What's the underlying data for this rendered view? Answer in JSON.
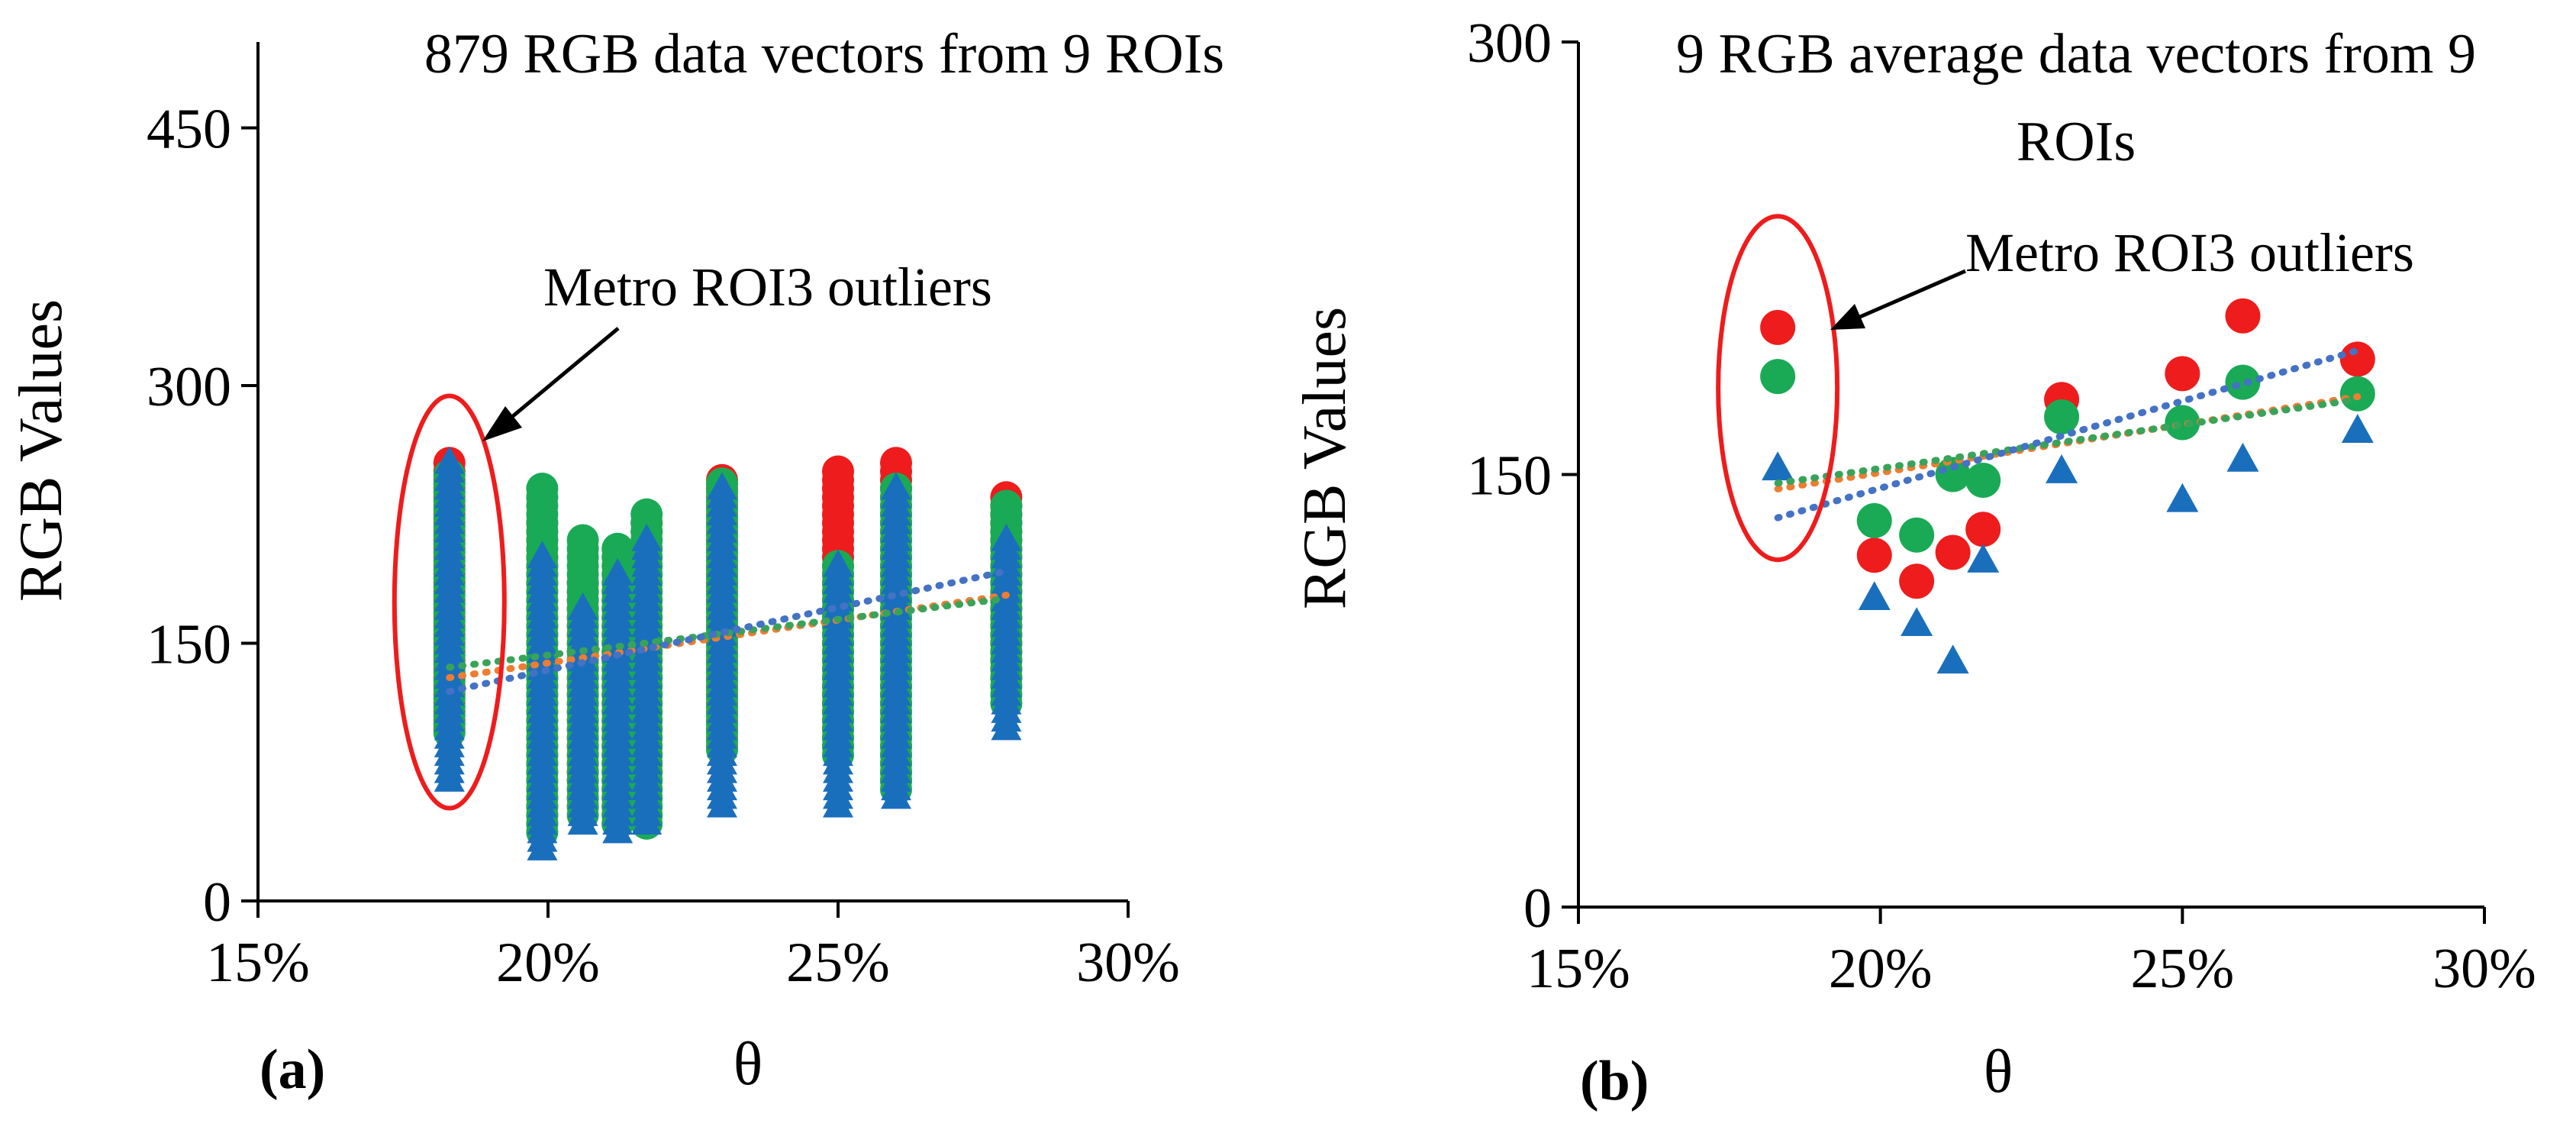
{
  "colors": {
    "red": "#ee1c1c",
    "green": "#1aaa55",
    "blue": "#1a6fbd",
    "ellipse": "#ee1c1c",
    "trend_blue": "#4472c4",
    "trend_orange": "#ed7d31",
    "trend_green": "#3aa35a"
  },
  "chart_data": [
    {
      "panel_label": "(a)",
      "type": "scatter",
      "title": "879 RGB data vectors from 9 ROIs",
      "xlabel": "θ",
      "ylabel": "RGB Values",
      "xlim": [
        0.15,
        0.3
      ],
      "ylim": [
        0,
        500
      ],
      "x_ticks": [
        0.15,
        0.2,
        0.25,
        0.3
      ],
      "x_tick_labels": [
        "15%",
        "20%",
        "25%",
        "30%"
      ],
      "y_ticks": [
        0,
        150,
        300,
        450
      ],
      "y_tick_labels": [
        "0",
        "150",
        "300",
        "450"
      ],
      "x_positions": [
        0.183,
        0.199,
        0.206,
        0.212,
        0.217,
        0.23,
        0.25,
        0.26,
        0.279
      ],
      "series": [
        {
          "name": "R",
          "marker": "circle",
          "color": "#ee1c1c",
          "ranges": [
            [
              100,
              255
            ],
            [
              45,
              220
            ],
            [
              55,
              185
            ],
            [
              45,
              182
            ],
            [
              50,
              222
            ],
            [
              90,
              245
            ],
            [
              90,
              252
            ],
            [
              70,
              255
            ],
            [
              130,
              238
            ]
          ],
          "trend": [
            130,
            178
          ]
        },
        {
          "name": "G",
          "marker": "circle",
          "color": "#1aaa55",
          "ranges": [
            [
              98,
              248
            ],
            [
              40,
              240
            ],
            [
              50,
              212
            ],
            [
              45,
              208
            ],
            [
              45,
              228
            ],
            [
              88,
              245
            ],
            [
              85,
              195
            ],
            [
              65,
              240
            ],
            [
              115,
              230
            ]
          ],
          "trend": [
            136,
            176
          ]
        },
        {
          "name": "B",
          "marker": "triangle",
          "color": "#1a6fbd",
          "ranges": [
            [
              70,
              255
            ],
            [
              30,
              200
            ],
            [
              45,
              170
            ],
            [
              40,
              190
            ],
            [
              45,
              210
            ],
            [
              55,
              240
            ],
            [
              55,
              195
            ],
            [
              60,
              240
            ],
            [
              100,
              210
            ]
          ],
          "trend": [
            122,
            192
          ]
        }
      ],
      "annotation": {
        "text": "Metro ROI3 outliers",
        "target": "ROI3"
      }
    },
    {
      "panel_label": "(b)",
      "type": "scatter",
      "title": "9 RGB average data vectors from 9 ROIs",
      "title_lines": [
        "9 RGB average data vectors from 9",
        "ROIs"
      ],
      "xlabel": "θ",
      "ylabel": "RGB Values",
      "xlim": [
        0.15,
        0.3
      ],
      "ylim": [
        0,
        300
      ],
      "x_ticks": [
        0.15,
        0.2,
        0.25,
        0.3
      ],
      "x_tick_labels": [
        "15%",
        "20%",
        "25%",
        "30%"
      ],
      "y_ticks": [
        0,
        150,
        300
      ],
      "y_tick_labels": [
        "0",
        "150",
        "300"
      ],
      "series": [
        {
          "name": "R",
          "marker": "circle",
          "color": "#ee1c1c",
          "x": [
            0.183,
            0.199,
            0.206,
            0.212,
            0.217,
            0.23,
            0.25,
            0.26,
            0.279
          ],
          "y": [
            201,
            122,
            113,
            123,
            131,
            176,
            185,
            205,
            190
          ],
          "trend": [
            145,
            177
          ]
        },
        {
          "name": "G",
          "marker": "circle",
          "color": "#1aaa55",
          "x": [
            0.183,
            0.199,
            0.206,
            0.212,
            0.217,
            0.23,
            0.25,
            0.26,
            0.279
          ],
          "y": [
            184,
            134,
            129,
            150,
            148,
            170,
            168,
            182,
            178
          ],
          "trend": [
            147,
            176
          ]
        },
        {
          "name": "B",
          "marker": "triangle",
          "color": "#1a6fbd",
          "x": [
            0.183,
            0.199,
            0.206,
            0.212,
            0.217,
            0.23,
            0.25,
            0.26,
            0.279
          ],
          "y": [
            152,
            107,
            98,
            85,
            120,
            151,
            141,
            155,
            165
          ],
          "trend": [
            135,
            193
          ]
        }
      ],
      "annotation": {
        "text": "Metro ROI3 outliers",
        "target": "ROI3"
      }
    }
  ]
}
